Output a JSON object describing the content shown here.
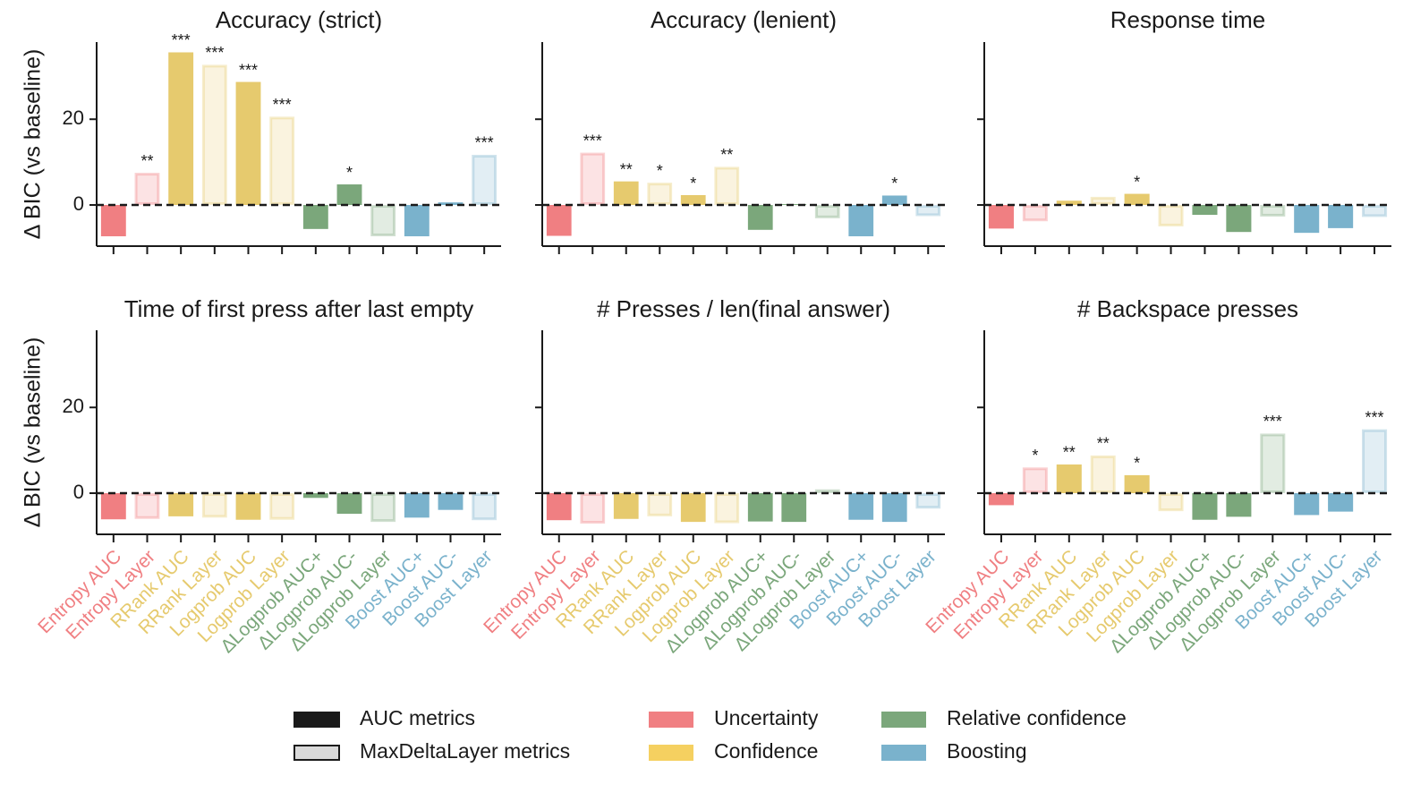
{
  "chart_data": [
    {
      "type": "bar",
      "title": "Accuracy (strict)",
      "ylabel": "Δ BIC (vs baseline)",
      "values": [
        -7.3,
        7.5,
        35.6,
        32.7,
        28.7,
        20.6,
        -5.6,
        4.8,
        -7.3,
        -7.3,
        0.6,
        11.7
      ],
      "significance": [
        null,
        "**",
        "***",
        "***",
        "***",
        "***",
        null,
        "*",
        null,
        null,
        null,
        "***"
      ],
      "ylim": [
        -9.6,
        38
      ],
      "yticks": [
        0,
        20
      ]
    },
    {
      "type": "bar",
      "title": "Accuracy (lenient)",
      "values": [
        -7.2,
        12.2,
        5.5,
        5.2,
        2.3,
        8.9,
        -5.8,
        0.2,
        -3.1,
        -7.3,
        2.2,
        -2.6
      ],
      "significance": [
        null,
        "***",
        "**",
        "*",
        "*",
        "**",
        null,
        null,
        null,
        null,
        "*",
        null
      ],
      "ylim": [
        -9.6,
        38
      ],
      "yticks": [
        0,
        20
      ]
    },
    {
      "type": "bar",
      "title": "Response time",
      "values": [
        -5.5,
        -3.8,
        1.0,
        1.9,
        2.6,
        -5.0,
        -2.3,
        -6.3,
        -2.7,
        -6.5,
        -5.4,
        -2.8
      ],
      "significance": [
        null,
        null,
        null,
        null,
        "*",
        null,
        null,
        null,
        null,
        null,
        null,
        null
      ],
      "ylim": [
        -9.6,
        38
      ],
      "yticks": [
        0,
        20
      ]
    },
    {
      "type": "bar",
      "title": "Time of first press after last empty",
      "ylabel": "Δ BIC (vs baseline)",
      "categories": [
        "Entropy AUC",
        "Entropy Layer",
        "RRank AUC",
        "RRank Layer",
        "Logprob AUC",
        "Logprob Layer",
        "ΔLogprob AUC+",
        "ΔLogprob AUC-",
        "ΔLogprob Layer",
        "Boost AUC+",
        "Boost AUC-",
        "Boost Layer"
      ],
      "values": [
        -6.1,
        -6.0,
        -5.4,
        -5.7,
        -6.2,
        -6.2,
        -1.1,
        -4.8,
        -6.7,
        -5.7,
        -3.9,
        -6.3
      ],
      "ylim": [
        -9.6,
        38
      ],
      "yticks": [
        0,
        20
      ]
    },
    {
      "type": "bar",
      "title": "# Presses / len(final answer)",
      "categories": [
        "Entropy AUC",
        "Entropy Layer",
        "RRank AUC",
        "RRank Layer",
        "Logprob AUC",
        "Logprob Layer",
        "ΔLogprob AUC+",
        "ΔLogprob AUC-",
        "ΔLogprob Layer",
        "Boost AUC+",
        "Boost AUC-",
        "Boost Layer"
      ],
      "values": [
        -6.3,
        -7.1,
        -6.0,
        -5.4,
        -6.7,
        -7.0,
        -6.6,
        -6.7,
        0.9,
        -6.2,
        -6.7,
        -3.6
      ],
      "ylim": [
        -9.6,
        38
      ],
      "yticks": [
        0,
        20
      ]
    },
    {
      "type": "bar",
      "title": "# Backspace presses",
      "categories": [
        "Entropy AUC",
        "Entropy Layer",
        "RRank AUC",
        "RRank Layer",
        "Logprob AUC",
        "Logprob Layer",
        "ΔLogprob AUC+",
        "ΔLogprob AUC-",
        "ΔLogprob Layer",
        "Boost AUC+",
        "Boost AUC-",
        "Boost Layer"
      ],
      "values": [
        -2.8,
        6.0,
        6.7,
        8.8,
        4.2,
        -4.2,
        -6.2,
        -5.5,
        13.9,
        -5.1,
        -4.3,
        14.9
      ],
      "significance": [
        null,
        "*",
        "**",
        "**",
        "*",
        null,
        null,
        null,
        "***",
        null,
        null,
        "***"
      ],
      "ylim": [
        -9.6,
        38
      ],
      "yticks": [
        0,
        20
      ]
    }
  ],
  "bar_colors": [
    "#f07f82",
    "#f07f82",
    "#e6ca6e",
    "#e6ca6e",
    "#e6ca6e",
    "#e6ca6e",
    "#7ba77b",
    "#7ba77b",
    "#7ba77b",
    "#7ab2cc",
    "#7ab2cc",
    "#7ab2cc"
  ],
  "outlined": [
    false,
    true,
    false,
    true,
    false,
    true,
    false,
    false,
    true,
    false,
    false,
    true
  ],
  "legend": {
    "styles": [
      {
        "name": "AUC metrics",
        "color": "#1a1a1a"
      },
      {
        "name": "MaxDeltaLayer metrics",
        "color": "#d9d9d9"
      }
    ],
    "groups": [
      {
        "name": "Uncertainty",
        "color": "#f07f82"
      },
      {
        "name": "Confidence",
        "color": "#f5d060"
      },
      {
        "name": "Relative confidence",
        "color": "#7ba77b"
      },
      {
        "name": "Boosting",
        "color": "#7ab2cc"
      }
    ]
  }
}
